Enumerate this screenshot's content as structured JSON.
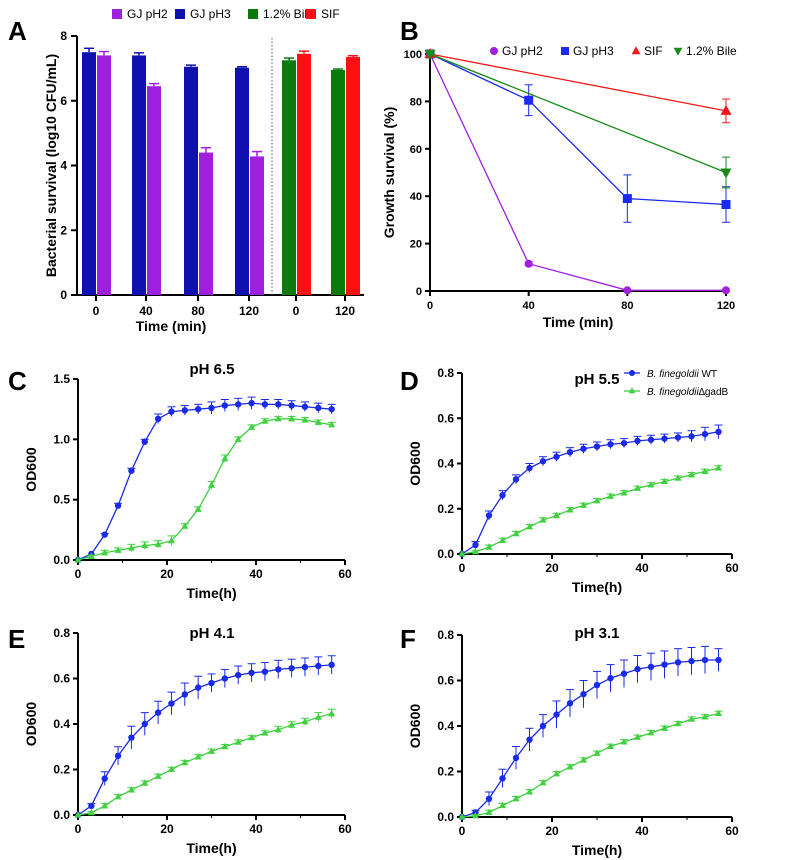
{
  "colors": {
    "gj_ph2": "#a020e0",
    "gj_ph3": "#1010b0",
    "bile": "#0a7a0a",
    "sif": "#ff1010",
    "line_ph3": "#1a2af0",
    "wt": "#1a2ae8",
    "gadb": "#40d040",
    "sif_line": "#f01818",
    "bile_line": "#1a8a1a"
  },
  "chart_data": [
    {
      "id": "A",
      "panel_label": "A",
      "type": "bar",
      "title": "",
      "xlabel": "Time (min)",
      "ylabel": "Bacterial survival (log10 CFU/mL)",
      "ylim": [
        0,
        8
      ],
      "yticks": [
        "0",
        "2",
        "4",
        "6",
        "8"
      ],
      "legend": [
        "GJ pH2",
        "GJ pH3",
        "1.2% Bile",
        "SIF"
      ],
      "groups": [
        {
          "label": "0",
          "bars": [
            {
              "series": "GJ pH3",
              "value": 7.5,
              "err": 0.12
            },
            {
              "series": "GJ pH2",
              "value": 7.4,
              "err": 0.12
            }
          ]
        },
        {
          "label": "40",
          "bars": [
            {
              "series": "GJ pH3",
              "value": 7.4,
              "err": 0.08
            },
            {
              "series": "GJ pH2",
              "value": 6.45,
              "err": 0.08
            }
          ]
        },
        {
          "label": "80",
          "bars": [
            {
              "series": "GJ pH3",
              "value": 7.05,
              "err": 0.05
            },
            {
              "series": "GJ pH2",
              "value": 4.4,
              "err": 0.15
            }
          ]
        },
        {
          "label": "120",
          "bars": [
            {
              "series": "GJ pH3",
              "value": 7.02,
              "err": 0.03
            },
            {
              "series": "GJ pH2",
              "value": 4.28,
              "err": 0.15
            }
          ]
        },
        {
          "label": "0",
          "bars": [
            {
              "series": "1.2% Bile",
              "value": 7.25,
              "err": 0.07
            },
            {
              "series": "SIF",
              "value": 7.45,
              "err": 0.08
            }
          ]
        },
        {
          "label": "120",
          "bars": [
            {
              "series": "1.2% Bile",
              "value": 6.95,
              "err": 0.03
            },
            {
              "series": "SIF",
              "value": 7.35,
              "err": 0.04
            }
          ]
        }
      ]
    },
    {
      "id": "B",
      "panel_label": "B",
      "type": "line",
      "title": "",
      "xlabel": "Time (min)",
      "ylabel": "Growth survival (%)",
      "xlim": [
        0,
        120
      ],
      "ylim": [
        0,
        100
      ],
      "xticks": [
        "0",
        "40",
        "80",
        "120"
      ],
      "yticks": [
        "0",
        "20",
        "40",
        "60",
        "80",
        "100"
      ],
      "series": [
        {
          "name": "GJ pH2",
          "x": [
            0,
            40,
            80,
            120
          ],
          "y": [
            100,
            11.5,
            0.3,
            0.3
          ],
          "err": [
            0,
            0.8,
            0,
            0
          ]
        },
        {
          "name": "GJ pH3",
          "x": [
            0,
            40,
            80,
            120
          ],
          "y": [
            100,
            80.5,
            39,
            36.5
          ],
          "err": [
            0,
            6.5,
            10,
            7.5
          ]
        },
        {
          "name": "SIF",
          "x": [
            0,
            120
          ],
          "y": [
            100,
            76
          ],
          "err": [
            0,
            5
          ]
        },
        {
          "name": "1.2% Bile",
          "x": [
            0,
            120
          ],
          "y": [
            100,
            50
          ],
          "err": [
            0,
            6.5
          ]
        }
      ]
    },
    {
      "id": "C",
      "panel_label": "C",
      "type": "line",
      "title": "pH 6.5",
      "xlabel": "Time(h)",
      "ylabel": "OD600",
      "xlim": [
        0,
        60
      ],
      "ylim": [
        0,
        1.5
      ],
      "xticks": [
        "0",
        "20",
        "40",
        "60"
      ],
      "yticks": [
        "0.0",
        "0.5",
        "1.0",
        "1.5"
      ],
      "series": [
        {
          "name": "WT",
          "x": [
            0,
            3,
            6,
            9,
            12,
            15,
            18,
            21,
            24,
            27,
            30,
            33,
            36,
            39,
            42,
            45,
            48,
            51,
            54,
            57
          ],
          "y": [
            0.0,
            0.05,
            0.21,
            0.45,
            0.74,
            0.98,
            1.17,
            1.23,
            1.24,
            1.25,
            1.26,
            1.28,
            1.29,
            1.3,
            1.29,
            1.29,
            1.28,
            1.27,
            1.26,
            1.25
          ],
          "err": [
            0,
            0,
            0.01,
            0.02,
            0.02,
            0.02,
            0.04,
            0.04,
            0.04,
            0.04,
            0.05,
            0.05,
            0.05,
            0.05,
            0.04,
            0.04,
            0.04,
            0.04,
            0.04,
            0.04
          ]
        },
        {
          "name": "ΔgadB",
          "x": [
            0,
            3,
            6,
            9,
            12,
            15,
            18,
            21,
            24,
            27,
            30,
            33,
            36,
            39,
            42,
            45,
            48,
            51,
            54,
            57
          ],
          "y": [
            0.0,
            0.03,
            0.06,
            0.08,
            0.1,
            0.12,
            0.13,
            0.16,
            0.28,
            0.42,
            0.62,
            0.84,
            1.0,
            1.1,
            1.15,
            1.17,
            1.17,
            1.16,
            1.14,
            1.12
          ],
          "err": [
            0,
            0.01,
            0.02,
            0.02,
            0.03,
            0.03,
            0.03,
            0.04,
            0.02,
            0.02,
            0.03,
            0.03,
            0.02,
            0.02,
            0.02,
            0.02,
            0.02,
            0.02,
            0.02,
            0.02
          ]
        }
      ]
    },
    {
      "id": "D",
      "panel_label": "D",
      "type": "line",
      "title": "pH 5.5",
      "xlabel": "Time(h)",
      "ylabel": "OD600",
      "xlim": [
        0,
        60
      ],
      "ylim": [
        0,
        0.8
      ],
      "xticks": [
        "0",
        "20",
        "40",
        "60"
      ],
      "yticks": [
        "0.0",
        "0.2",
        "0.4",
        "0.6",
        "0.8"
      ],
      "legend_entries": [
        {
          "italic": "B. finegoldii",
          "rest": " WT"
        },
        {
          "italic": "B. finegoldii",
          "rest": "∆gadB"
        }
      ],
      "series": [
        {
          "name": "WT",
          "x": [
            0,
            3,
            6,
            9,
            12,
            15,
            18,
            21,
            24,
            27,
            30,
            33,
            36,
            39,
            42,
            45,
            48,
            51,
            54,
            57
          ],
          "y": [
            0.0,
            0.04,
            0.17,
            0.26,
            0.33,
            0.38,
            0.41,
            0.43,
            0.45,
            0.465,
            0.475,
            0.485,
            0.49,
            0.5,
            0.505,
            0.51,
            0.515,
            0.52,
            0.53,
            0.54
          ],
          "err": [
            0,
            0.015,
            0.02,
            0.02,
            0.02,
            0.02,
            0.02,
            0.02,
            0.02,
            0.02,
            0.02,
            0.02,
            0.02,
            0.02,
            0.02,
            0.02,
            0.02,
            0.025,
            0.03,
            0.03
          ]
        },
        {
          "name": "ΔgadB",
          "x": [
            0,
            3,
            6,
            9,
            12,
            15,
            18,
            21,
            24,
            27,
            30,
            33,
            36,
            39,
            42,
            45,
            48,
            51,
            54,
            57
          ],
          "y": [
            0.0,
            0.01,
            0.03,
            0.06,
            0.09,
            0.12,
            0.15,
            0.17,
            0.195,
            0.215,
            0.235,
            0.255,
            0.27,
            0.29,
            0.305,
            0.32,
            0.335,
            0.35,
            0.365,
            0.38
          ],
          "err": [
            0,
            0.005,
            0.01,
            0.01,
            0.01,
            0.01,
            0.01,
            0.01,
            0.01,
            0.01,
            0.01,
            0.01,
            0.01,
            0.01,
            0.01,
            0.01,
            0.01,
            0.01,
            0.01,
            0.01
          ]
        }
      ]
    },
    {
      "id": "E",
      "panel_label": "E",
      "type": "line",
      "title": "pH 4.1",
      "xlabel": "Time(h)",
      "ylabel": "OD600",
      "xlim": [
        0,
        60
      ],
      "ylim": [
        0,
        0.8
      ],
      "xticks": [
        "0",
        "20",
        "40",
        "60"
      ],
      "yticks": [
        "0.0",
        "0.2",
        "0.4",
        "0.6",
        "0.8"
      ],
      "series": [
        {
          "name": "WT",
          "x": [
            0,
            3,
            6,
            9,
            12,
            15,
            18,
            21,
            24,
            27,
            30,
            33,
            36,
            39,
            42,
            45,
            48,
            51,
            54,
            57
          ],
          "y": [
            0.0,
            0.04,
            0.16,
            0.26,
            0.34,
            0.4,
            0.45,
            0.49,
            0.53,
            0.56,
            0.58,
            0.6,
            0.615,
            0.625,
            0.63,
            0.64,
            0.645,
            0.65,
            0.655,
            0.66
          ],
          "err": [
            0,
            0.01,
            0.03,
            0.04,
            0.05,
            0.05,
            0.05,
            0.05,
            0.05,
            0.05,
            0.04,
            0.04,
            0.04,
            0.04,
            0.04,
            0.04,
            0.04,
            0.04,
            0.04,
            0.04
          ]
        },
        {
          "name": "ΔgadB",
          "x": [
            0,
            3,
            6,
            9,
            12,
            15,
            18,
            21,
            24,
            27,
            30,
            33,
            36,
            39,
            42,
            45,
            48,
            51,
            54,
            57
          ],
          "y": [
            0.0,
            0.01,
            0.04,
            0.08,
            0.11,
            0.14,
            0.17,
            0.2,
            0.23,
            0.255,
            0.28,
            0.3,
            0.32,
            0.34,
            0.36,
            0.375,
            0.395,
            0.41,
            0.43,
            0.445
          ],
          "err": [
            0,
            0.005,
            0.01,
            0.01,
            0.01,
            0.01,
            0.01,
            0.01,
            0.01,
            0.01,
            0.01,
            0.01,
            0.01,
            0.01,
            0.01,
            0.015,
            0.015,
            0.015,
            0.02,
            0.02
          ]
        }
      ]
    },
    {
      "id": "F",
      "panel_label": "F",
      "type": "line",
      "title": "pH 3.1",
      "xlabel": "Time(h)",
      "ylabel": "OD600",
      "xlim": [
        0,
        60
      ],
      "ylim": [
        0,
        0.8
      ],
      "xticks": [
        "0",
        "20",
        "40",
        "60"
      ],
      "yticks": [
        "0.0",
        "0.2",
        "0.4",
        "0.6",
        "0.8"
      ],
      "series": [
        {
          "name": "WT",
          "x": [
            0,
            3,
            6,
            9,
            12,
            15,
            18,
            21,
            24,
            27,
            30,
            33,
            36,
            39,
            42,
            45,
            48,
            51,
            54,
            57
          ],
          "y": [
            0.0,
            0.02,
            0.08,
            0.17,
            0.26,
            0.34,
            0.4,
            0.45,
            0.5,
            0.54,
            0.58,
            0.61,
            0.63,
            0.65,
            0.66,
            0.67,
            0.68,
            0.685,
            0.69,
            0.69
          ],
          "err": [
            0,
            0.01,
            0.03,
            0.04,
            0.05,
            0.05,
            0.05,
            0.06,
            0.06,
            0.06,
            0.06,
            0.06,
            0.06,
            0.06,
            0.06,
            0.06,
            0.06,
            0.06,
            0.06,
            0.05
          ]
        },
        {
          "name": "ΔgadB",
          "x": [
            0,
            3,
            6,
            9,
            12,
            15,
            18,
            21,
            24,
            27,
            30,
            33,
            36,
            39,
            42,
            45,
            48,
            51,
            54,
            57
          ],
          "y": [
            0.0,
            0.005,
            0.02,
            0.05,
            0.08,
            0.11,
            0.15,
            0.19,
            0.22,
            0.25,
            0.28,
            0.31,
            0.33,
            0.35,
            0.37,
            0.39,
            0.41,
            0.43,
            0.44,
            0.455
          ],
          "err": [
            0,
            0.005,
            0.01,
            0.01,
            0.01,
            0.01,
            0.01,
            0.01,
            0.01,
            0.01,
            0.01,
            0.01,
            0.01,
            0.01,
            0.01,
            0.01,
            0.01,
            0.01,
            0.01,
            0.01
          ]
        }
      ]
    }
  ]
}
